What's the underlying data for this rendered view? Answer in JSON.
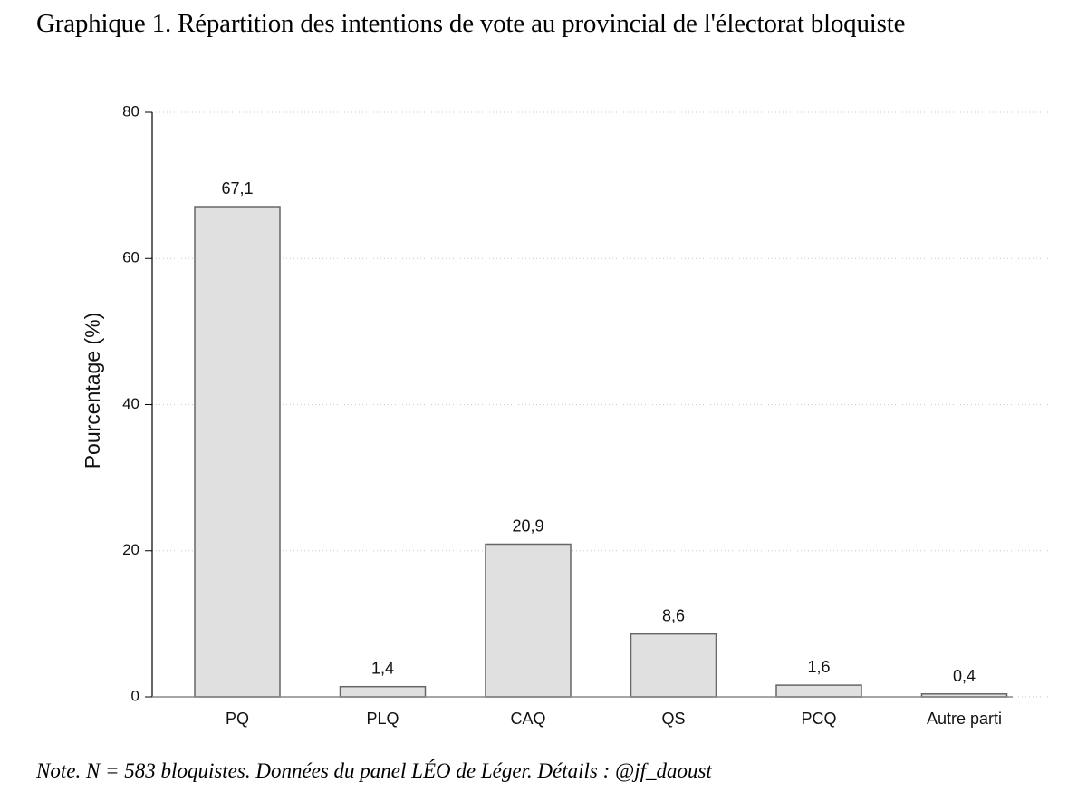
{
  "title": "Graphique 1. Répartition des intentions de vote au provincial de l'électorat bloquiste",
  "note": "Note. N = 583 bloquistes. Données du panel LÉO de Léger. Détails : @jf_daoust",
  "colors": {
    "bar_fill": "#e0e0e0",
    "bar_stroke": "#666666",
    "grid": "#c8c8c8",
    "axis": "#000000"
  },
  "chart_data": {
    "type": "bar",
    "title": "Graphique 1. Répartition des intentions de vote au provincial de l'électorat bloquiste",
    "xlabel": "",
    "ylabel": "Pourcentage (%)",
    "ylim": [
      0,
      80
    ],
    "yticks": [
      0,
      20,
      40,
      60,
      80
    ],
    "grid": true,
    "categories": [
      "PQ",
      "PLQ",
      "CAQ",
      "QS",
      "PCQ",
      "Autre parti"
    ],
    "values": [
      67.1,
      1.4,
      20.9,
      8.6,
      1.6,
      0.4
    ],
    "value_labels": [
      "67,1",
      "1,4",
      "20,9",
      "8,6",
      "1,6",
      "0,4"
    ]
  }
}
